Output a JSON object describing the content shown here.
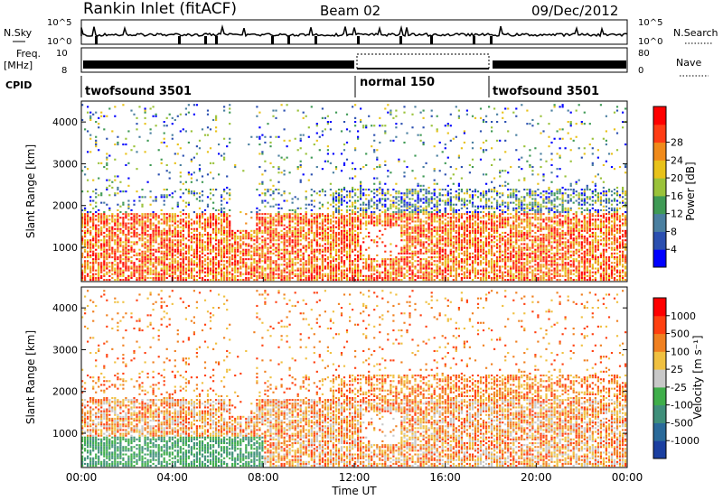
{
  "header": {
    "station": "Rankin Inlet (fitACF)",
    "beam": "Beam 02",
    "date": "09/Dec/2012"
  },
  "panels": {
    "nsky_label": "N.Sky",
    "nsearch_label": "N.Search",
    "nsky_ticks": [
      "10^5",
      "10^0"
    ],
    "nsearch_ticks": [
      "10^5",
      "10^0"
    ],
    "freq_label_1": "Freq.",
    "freq_label_2": "[MHz]",
    "freq_ticks": [
      "10",
      "8"
    ],
    "nave_label": "Nave",
    "nave_ticks": [
      "80",
      "0"
    ],
    "cpid_label": "CPID",
    "cpid_segments": [
      {
        "name": "twofsound 3501"
      },
      {
        "name": "normal 150"
      },
      {
        "name": "twofsound 3501"
      }
    ]
  },
  "chart_data": [
    {
      "type": "heatmap",
      "name": "power",
      "ylabel": "Slant Range [km]",
      "ylim": [
        180,
        4500
      ],
      "yticks": [
        1000,
        2000,
        3000,
        4000
      ],
      "xlim": [
        0,
        24
      ],
      "colorbar_label": "Power [dB]",
      "colorbar_ticks": [
        "4",
        "8",
        "12",
        "16",
        "20",
        "24",
        "28"
      ],
      "colorbar_colors": [
        "#0000ff",
        "#2b4fb0",
        "#4a7fa0",
        "#3f9a55",
        "#9ac23a",
        "#e8c21a",
        "#f08a1a",
        "#ff3c14",
        "#ff0000"
      ]
    },
    {
      "type": "heatmap",
      "name": "velocity",
      "ylabel": "Slant Range [km]",
      "ylim": [
        180,
        4500
      ],
      "yticks": [
        1000,
        2000,
        3000,
        4000
      ],
      "xlim": [
        0,
        24
      ],
      "xlabel": "Time UT",
      "xticks": [
        "00:00",
        "04:00",
        "08:00",
        "12:00",
        "16:00",
        "20:00",
        "00:00"
      ],
      "colorbar_label": "Velocity [m s⁻¹]",
      "colorbar_ticks": [
        "1000",
        "500",
        "100",
        "25",
        "-25",
        "-100",
        "-500",
        "-1000"
      ],
      "colorbar_colors": [
        "#1b3fa0",
        "#2a6a9a",
        "#3f8f7a",
        "#3fae4a",
        "#c8c8c8",
        "#f0c040",
        "#f08020",
        "#ff4010",
        "#ff0000"
      ]
    }
  ]
}
